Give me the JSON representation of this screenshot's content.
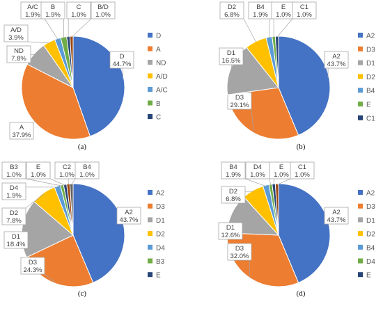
{
  "colors": {
    "blue": "#4472C4",
    "orange": "#ED7D31",
    "gray": "#A5A5A5",
    "yellow": "#FFC000",
    "lightblue": "#5B9BD5",
    "green": "#70AD47",
    "navy": "#264478",
    "brown": "#9E480E",
    "darkgray": "#636363",
    "olive": "#997300",
    "steel": "#255E91",
    "darkgreen": "#43682B"
  },
  "chart_data": [
    {
      "type": "pie",
      "panel_label": "(a)",
      "slices": [
        {
          "label": "D",
          "value": 44.7,
          "text": "44.7%",
          "color": "blue",
          "legend": true
        },
        {
          "label": "A",
          "value": 37.9,
          "text": "37.9%",
          "color": "orange",
          "legend": true
        },
        {
          "label": "ND",
          "value": 7.8,
          "text": "7.8%",
          "color": "gray",
          "legend": true
        },
        {
          "label": "A/D",
          "value": 3.9,
          "text": "3.9%",
          "color": "yellow",
          "legend": true
        },
        {
          "label": "A/C",
          "value": 1.9,
          "text": "1.9%",
          "color": "lightblue",
          "legend": true
        },
        {
          "label": "B",
          "value": 1.9,
          "text": "1.9%",
          "color": "green",
          "legend": true
        },
        {
          "label": "C",
          "value": 1.0,
          "text": "1.0%",
          "color": "navy",
          "legend": true
        },
        {
          "label": "B/D",
          "value": 1.0,
          "text": "1.0%",
          "color": "brown",
          "legend": false
        }
      ]
    },
    {
      "type": "pie",
      "panel_label": "(b)",
      "slices": [
        {
          "label": "A2",
          "value": 43.7,
          "text": "43.7%",
          "color": "blue",
          "legend": true
        },
        {
          "label": "D3",
          "value": 29.1,
          "text": "29.1%",
          "color": "orange",
          "legend": true
        },
        {
          "label": "D1",
          "value": 16.5,
          "text": "16.5%",
          "color": "gray",
          "legend": true
        },
        {
          "label": "D2",
          "value": 6.8,
          "text": "6.8%",
          "color": "yellow",
          "legend": true
        },
        {
          "label": "B4",
          "value": 1.9,
          "text": "1.9%",
          "color": "lightblue",
          "legend": true
        },
        {
          "label": "E",
          "value": 1.0,
          "text": "1.0%",
          "color": "green",
          "legend": true
        },
        {
          "label": "C1",
          "value": 1.0,
          "text": "1.0%",
          "color": "navy",
          "legend": true
        }
      ]
    },
    {
      "type": "pie",
      "panel_label": "(c)",
      "slices": [
        {
          "label": "A2",
          "value": 43.7,
          "text": "43.7%",
          "color": "blue",
          "legend": true
        },
        {
          "label": "D3",
          "value": 24.3,
          "text": "24.3%",
          "color": "orange",
          "legend": true
        },
        {
          "label": "D1",
          "value": 18.4,
          "text": "18.4%",
          "color": "gray",
          "legend": true
        },
        {
          "label": "D2",
          "value": 7.8,
          "text": "7.8%",
          "color": "yellow",
          "legend": true
        },
        {
          "label": "D4",
          "value": 1.9,
          "text": "1.9%",
          "color": "lightblue",
          "legend": true
        },
        {
          "label": "B3",
          "value": 1.0,
          "text": "1.0%",
          "color": "green",
          "legend": true
        },
        {
          "label": "E",
          "value": 1.0,
          "text": "1.0%",
          "color": "navy",
          "legend": true
        },
        {
          "label": "C2",
          "value": 1.0,
          "text": "1.0%",
          "color": "brown",
          "legend": false
        },
        {
          "label": "B4",
          "value": 1.0,
          "text": "1.0%",
          "color": "darkgray",
          "legend": false
        }
      ]
    },
    {
      "type": "pie",
      "panel_label": "(d)",
      "slices": [
        {
          "label": "A2",
          "value": 43.7,
          "text": "43.7%",
          "color": "blue",
          "legend": true
        },
        {
          "label": "D3",
          "value": 32.0,
          "text": "32.0%",
          "color": "orange",
          "legend": true
        },
        {
          "label": "D1",
          "value": 12.6,
          "text": "12.6%",
          "color": "gray",
          "legend": true
        },
        {
          "label": "D2",
          "value": 6.8,
          "text": "6.8%",
          "color": "yellow",
          "legend": true
        },
        {
          "label": "B4",
          "value": 1.9,
          "text": "1.9%",
          "color": "lightblue",
          "legend": true
        },
        {
          "label": "D4",
          "value": 1.0,
          "text": "1.0%",
          "color": "green",
          "legend": true
        },
        {
          "label": "E",
          "value": 1.0,
          "text": "1.0%",
          "color": "navy",
          "legend": true
        },
        {
          "label": "C1",
          "value": 1.0,
          "text": "1.0%",
          "color": "brown",
          "legend": false
        }
      ]
    }
  ]
}
